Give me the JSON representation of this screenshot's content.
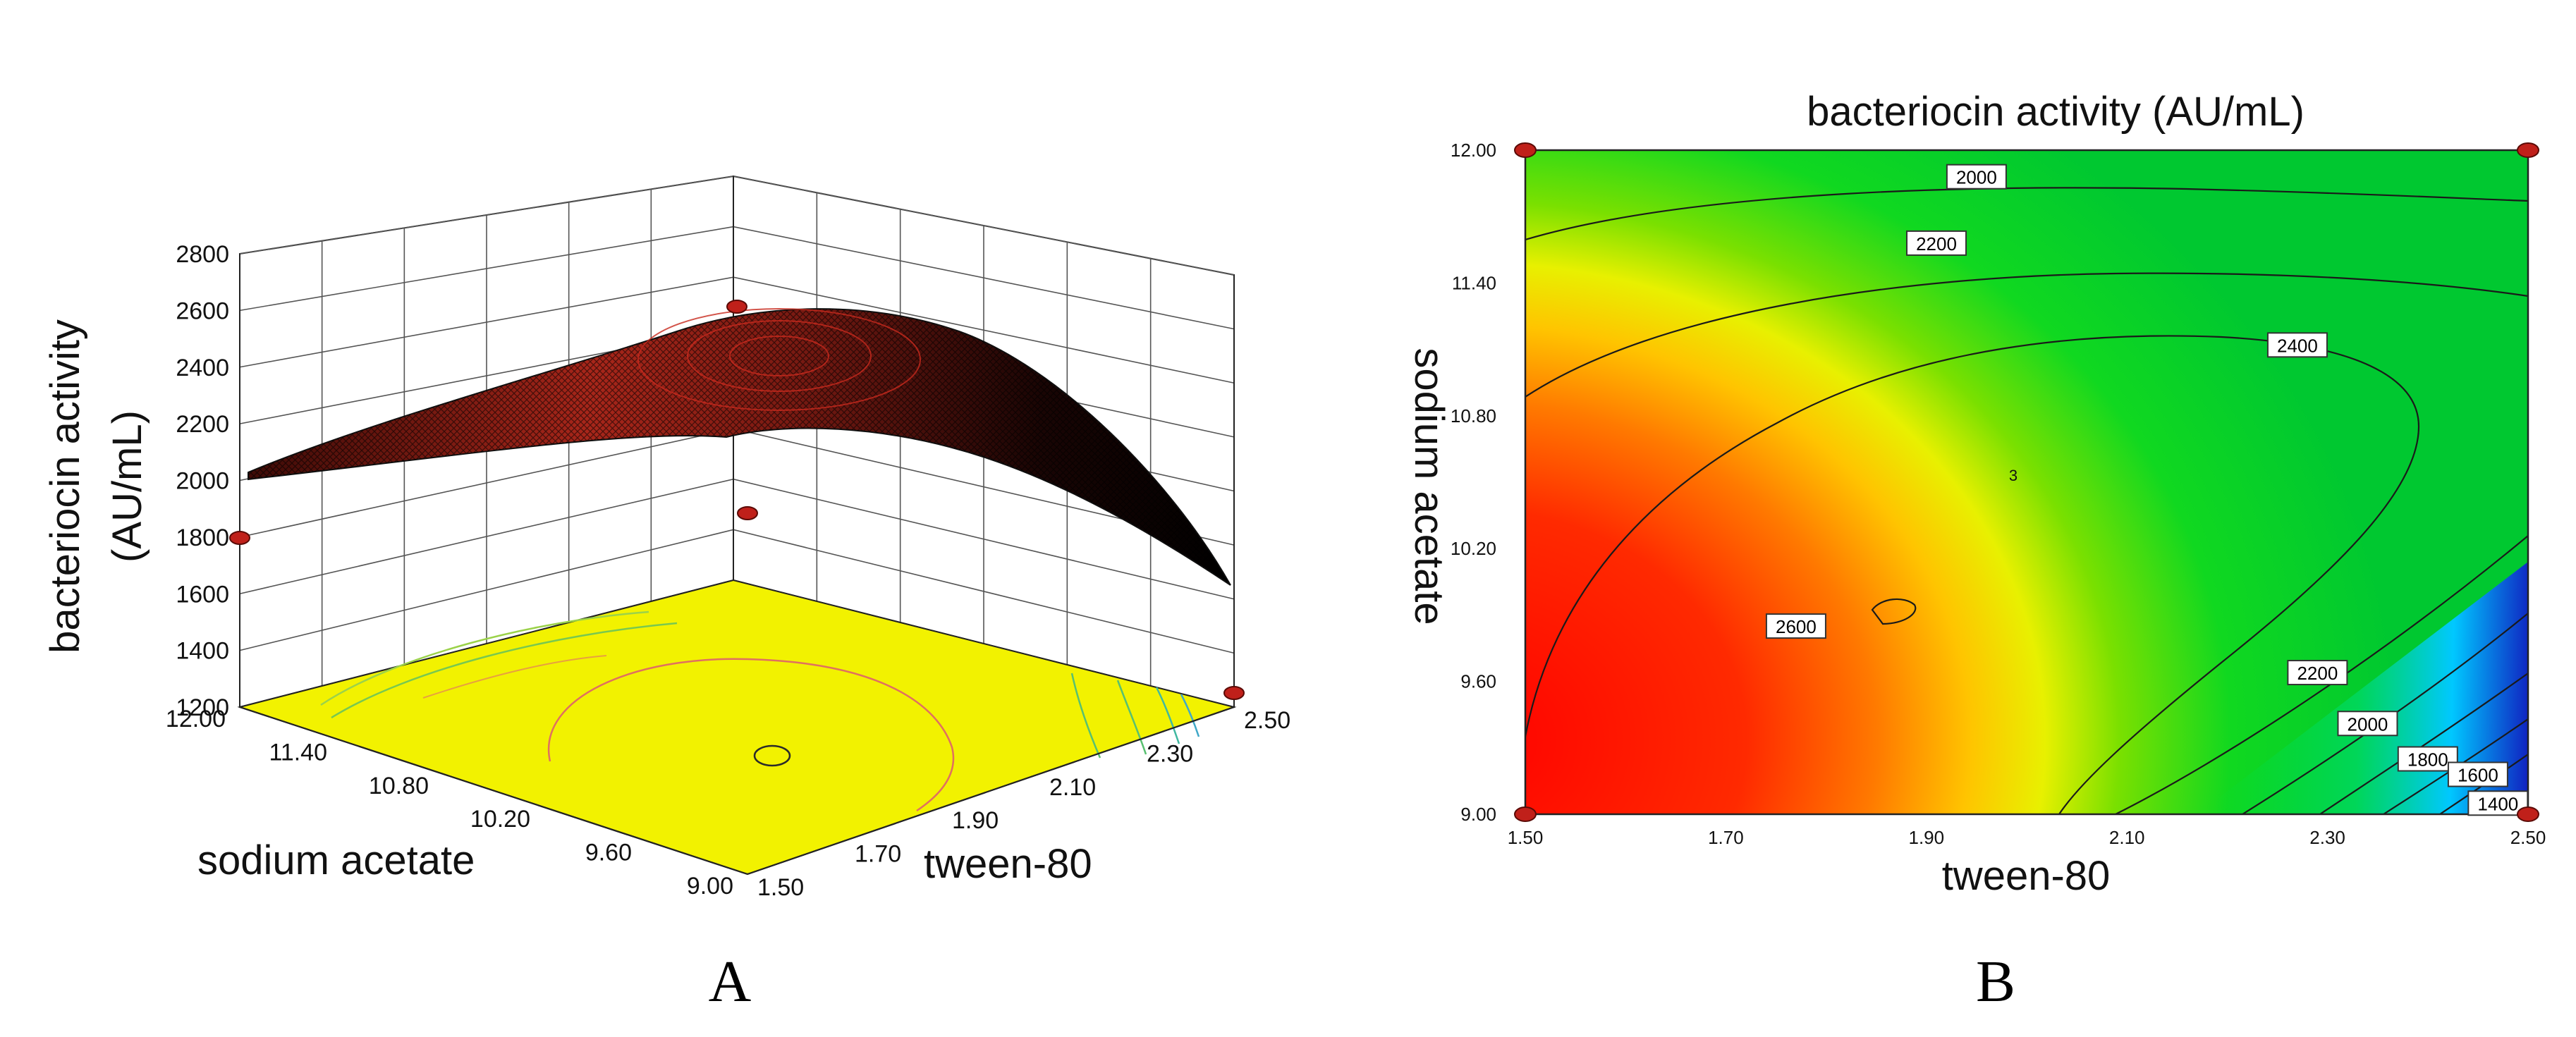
{
  "panel_a": {
    "label": "A"
  },
  "panel_b": {
    "label": "B"
  },
  "chart_data": [
    {
      "type": "surface3d",
      "zlabel_lines": [
        "bacteriocin activity",
        "(AU/mL)"
      ],
      "xlabel": "tween-80",
      "ylabel": "sodium acetate",
      "z_ticks": [
        "1200",
        "1400",
        "1600",
        "1800",
        "2000",
        "2200",
        "2400",
        "2600",
        "2800"
      ],
      "x_ticks": [
        "1.50",
        "1.70",
        "1.90",
        "2.10",
        "2.30",
        "2.50"
      ],
      "y_ticks": [
        "9.00",
        "9.60",
        "10.20",
        "10.80",
        "11.40",
        "12.00"
      ],
      "zlim": [
        1200,
        2800
      ],
      "xlim": [
        1.5,
        2.5
      ],
      "ylim": [
        9.0,
        12.0
      ],
      "design_points": [
        {
          "tween80": 1.5,
          "sodium_acetate": 12.0,
          "activity": 1800
        },
        {
          "tween80": 1.5,
          "sodium_acetate": 9.0,
          "activity": 2480
        },
        {
          "tween80": 2.0,
          "sodium_acetate": 10.5,
          "activity": 2620
        },
        {
          "tween80": 2.5,
          "sodium_acetate": 9.0,
          "activity": 1250
        }
      ],
      "floor_color": "#f2f200",
      "surface_colors": [
        "#000000",
        "#c0201a"
      ]
    },
    {
      "type": "contour",
      "title": "bacteriocin activity (AU/mL)",
      "xlabel": "tween-80",
      "ylabel": "sodium acetate",
      "x_ticks": [
        "1.50",
        "1.70",
        "1.90",
        "2.10",
        "2.30",
        "2.50"
      ],
      "y_ticks": [
        "9.00",
        "9.60",
        "10.20",
        "10.80",
        "11.40",
        "12.00"
      ],
      "xlim": [
        1.5,
        2.5
      ],
      "ylim": [
        9.0,
        12.0
      ],
      "contour_labels": [
        {
          "value": "2000",
          "x": 1.95,
          "y": 11.88
        },
        {
          "value": "2200",
          "x": 1.91,
          "y": 11.58
        },
        {
          "value": "2400",
          "x": 2.27,
          "y": 11.12
        },
        {
          "value": "2600",
          "x": 1.77,
          "y": 9.85
        },
        {
          "value": "2200",
          "x": 2.29,
          "y": 9.64
        },
        {
          "value": "2000",
          "x": 2.34,
          "y": 9.41
        },
        {
          "value": "1800",
          "x": 2.4,
          "y": 9.25
        },
        {
          "value": "1600",
          "x": 2.45,
          "y": 9.18
        },
        {
          "value": "1400",
          "x": 2.47,
          "y": 9.05
        }
      ],
      "design_points": [
        {
          "tween80": 1.5,
          "sodium_acetate": 12.0
        },
        {
          "tween80": 2.5,
          "sodium_acetate": 12.0
        },
        {
          "tween80": 1.5,
          "sodium_acetate": 9.0
        },
        {
          "tween80": 2.5,
          "sodium_acetate": 9.0
        }
      ],
      "colorscale": [
        "#1030d0",
        "#00c8ff",
        "#00e040",
        "#30d000",
        "#d8f000",
        "#ffc000",
        "#ff6000",
        "#ff0000"
      ]
    }
  ]
}
